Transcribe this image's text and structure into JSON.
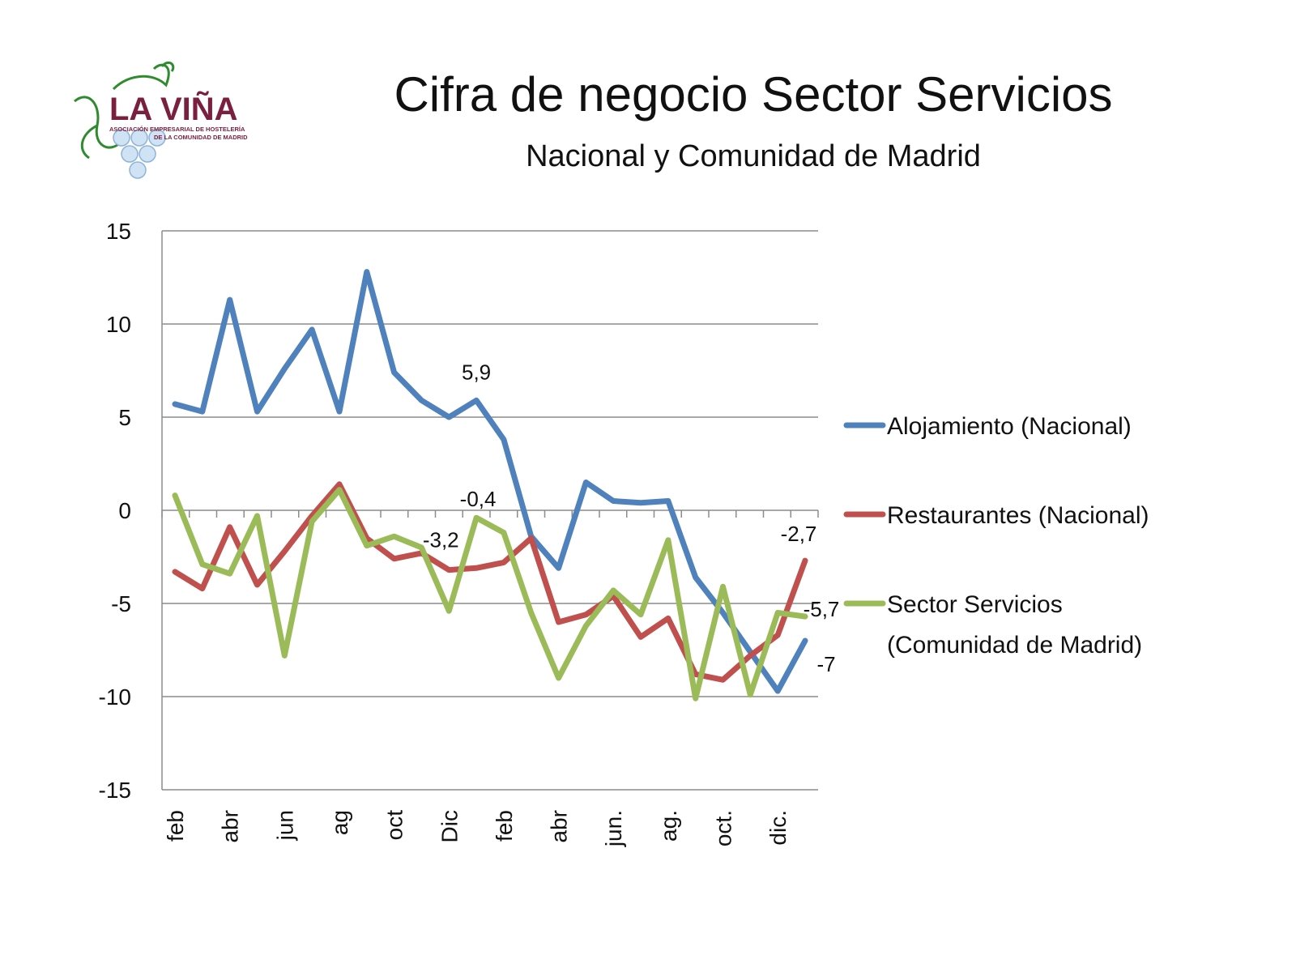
{
  "header": {
    "title": "Cifra de negocio Sector Servicios",
    "subtitle": "Nacional y Comunidad de Madrid"
  },
  "logo": {
    "name": "LA VIÑA",
    "tagline_1": "ASOCIACIÓN EMPRESARIAL DE HOSTELERÍA",
    "tagline_2": "DE LA COMUNIDAD DE MADRID"
  },
  "chart_data": {
    "type": "line",
    "ylim": [
      -15,
      15
    ],
    "yticks": [
      15,
      10,
      5,
      0,
      -5,
      -10,
      -15
    ],
    "grid": true,
    "legend_position": "right",
    "x_labels": [
      "feb",
      "abr",
      "jun",
      "ag",
      "oct",
      "Dic",
      "feb",
      "abr",
      "jun.",
      "ag.",
      "oct.",
      "dic."
    ],
    "series": [
      {
        "name": "Alojamiento (Nacional)",
        "color": "#4f81bd",
        "values": [
          5.7,
          5.3,
          11.3,
          5.3,
          7.6,
          9.7,
          5.3,
          12.8,
          7.4,
          5.9,
          5.0,
          5.9,
          3.8,
          -1.4,
          -3.1,
          1.5,
          0.5,
          0.4,
          0.5,
          -3.6,
          -5.5,
          -7.6,
          -9.7,
          -7
        ]
      },
      {
        "name": "Restaurantes (Nacional)",
        "color": "#c0504d",
        "values": [
          -3.3,
          -4.2,
          -0.9,
          -4.0,
          -2.2,
          -0.3,
          1.4,
          -1.5,
          -2.6,
          -2.3,
          -3.2,
          -3.1,
          -2.8,
          -1.5,
          -6.0,
          -5.6,
          -4.6,
          -6.8,
          -5.8,
          -8.8,
          -9.1,
          -7.8,
          -6.7,
          -2.7
        ]
      },
      {
        "name": "Sector Servicios (Comunidad de Madrid)",
        "legend_lines": [
          "Sector Servicios",
          "(Comunidad de Madrid)"
        ],
        "color": "#9bbb59",
        "values": [
          0.8,
          -2.9,
          -3.4,
          -0.3,
          -7.8,
          -0.6,
          1.1,
          -1.9,
          -1.4,
          -2.0,
          -5.4,
          -0.4,
          -1.2,
          -5.5,
          -9.0,
          -6.2,
          -4.3,
          -5.6,
          -1.6,
          -10.1,
          -4.1,
          -9.9,
          -5.5,
          -5.7
        ]
      }
    ],
    "data_labels": [
      {
        "text": "5,9",
        "series": 0,
        "index": 11
      },
      {
        "text": "-7",
        "series": 0,
        "index": 23
      },
      {
        "text": "-3,2",
        "series": 1,
        "index": 10
      },
      {
        "text": "-2,7",
        "series": 1,
        "index": 23
      },
      {
        "text": "-0,4",
        "series": 2,
        "index": 11
      },
      {
        "text": "-5,7",
        "series": 2,
        "index": 23
      }
    ]
  }
}
